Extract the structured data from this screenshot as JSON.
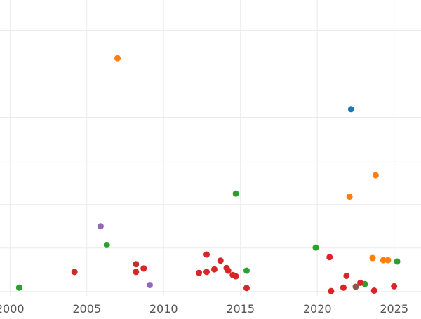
{
  "chart_data": {
    "type": "scatter",
    "title": "",
    "xlabel": "",
    "ylabel": "",
    "x_ticks": [
      2000,
      2005,
      2010,
      2015,
      2020,
      2025
    ],
    "xlim": [
      1999.35,
      2026.75
    ],
    "ylim": [
      -1,
      67
    ],
    "y_gridlines": [
      0,
      10,
      20,
      30,
      40,
      50,
      60
    ],
    "show_y_tick_labels": false,
    "grid": true,
    "legend": "none",
    "colors": {
      "blue": "#1f77b4",
      "orange": "#ff7f0e",
      "green": "#2ca02c",
      "red": "#d62728",
      "purple": "#9467bd",
      "brown": "#8c564b"
    },
    "series": [
      {
        "color_key": "blue",
        "points": [
          [
            2022.2,
            41.9
          ]
        ]
      },
      {
        "color_key": "orange",
        "points": [
          [
            2007.0,
            53.6
          ],
          [
            2022.1,
            21.8
          ],
          [
            2023.8,
            26.7
          ],
          [
            2023.6,
            7.7
          ],
          [
            2024.3,
            7.2
          ],
          [
            2024.6,
            7.2
          ]
        ]
      },
      {
        "color_key": "green",
        "points": [
          [
            2000.6,
            0.9
          ],
          [
            2006.3,
            10.7
          ],
          [
            2014.7,
            22.5
          ],
          [
            2015.4,
            4.8
          ],
          [
            2019.9,
            10.1
          ],
          [
            2023.1,
            1.7
          ],
          [
            2025.2,
            6.9
          ]
        ]
      },
      {
        "color_key": "red",
        "points": [
          [
            2004.2,
            4.5
          ],
          [
            2008.2,
            6.3
          ],
          [
            2008.2,
            4.5
          ],
          [
            2008.7,
            5.3
          ],
          [
            2012.3,
            4.3
          ],
          [
            2012.8,
            8.5
          ],
          [
            2012.8,
            4.5
          ],
          [
            2013.3,
            5.1
          ],
          [
            2013.7,
            7.1
          ],
          [
            2014.1,
            5.4
          ],
          [
            2014.2,
            4.8
          ],
          [
            2014.5,
            3.8
          ],
          [
            2014.7,
            3.5
          ],
          [
            2015.4,
            0.8
          ],
          [
            2020.8,
            7.9
          ],
          [
            2020.9,
            0.1
          ],
          [
            2021.7,
            0.9
          ],
          [
            2021.9,
            3.6
          ],
          [
            2022.8,
            2.0
          ],
          [
            2023.7,
            0.2
          ],
          [
            2025.0,
            1.2
          ]
        ]
      },
      {
        "color_key": "purple",
        "points": [
          [
            2005.9,
            15.0
          ],
          [
            2009.1,
            1.5
          ]
        ]
      },
      {
        "color_key": "brown",
        "points": [
          [
            2022.5,
            1.1
          ]
        ]
      }
    ]
  }
}
